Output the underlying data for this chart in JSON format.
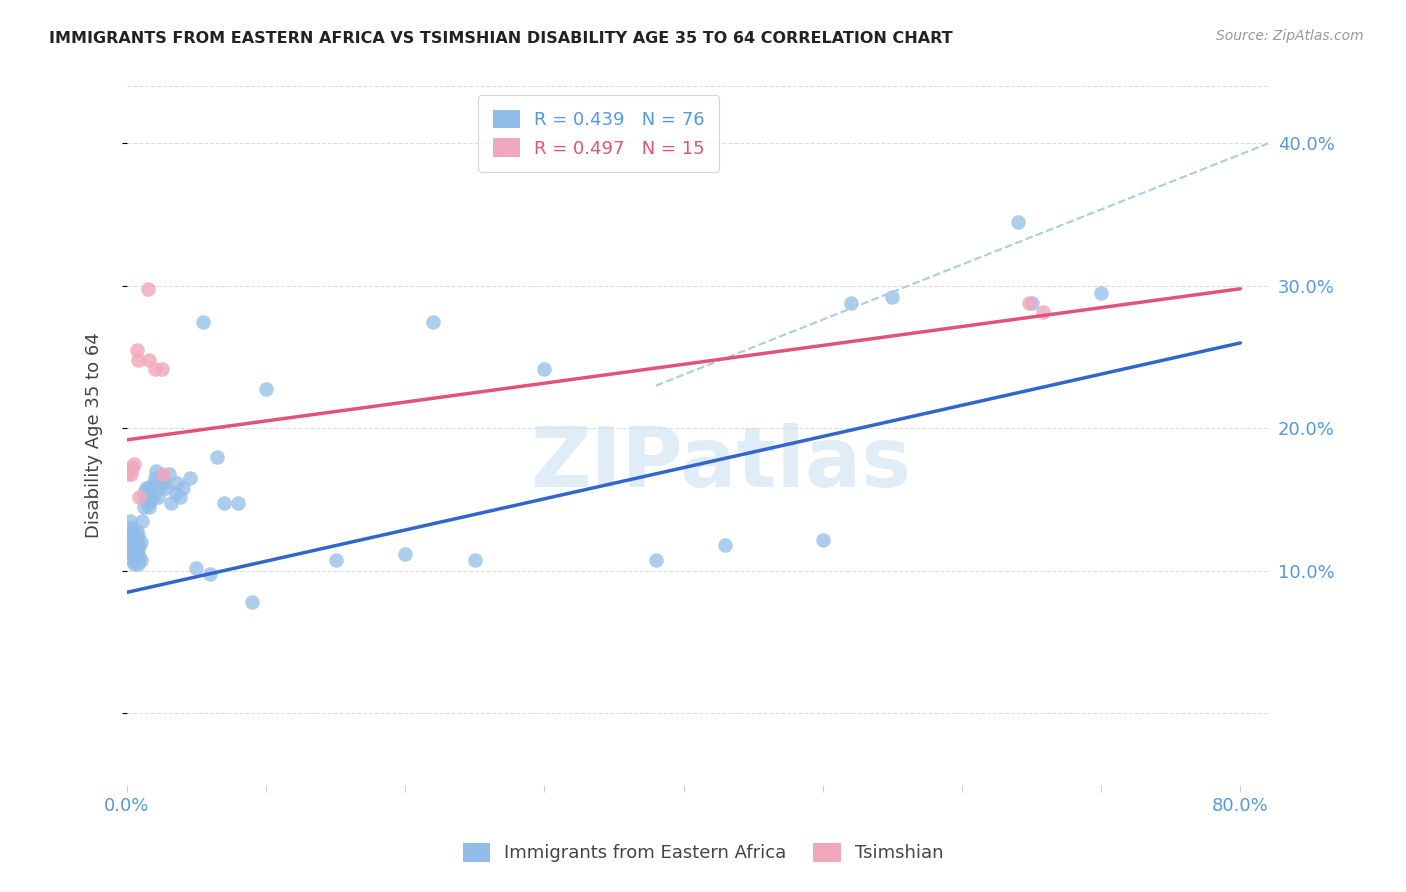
{
  "title": "IMMIGRANTS FROM EASTERN AFRICA VS TSIMSHIAN DISABILITY AGE 35 TO 64 CORRELATION CHART",
  "source": "Source: ZipAtlas.com",
  "ylabel": "Disability Age 35 to 64",
  "xlim": [
    0.0,
    0.82
  ],
  "ylim": [
    -0.05,
    0.44
  ],
  "xtick_positions": [
    0.0,
    0.1,
    0.2,
    0.3,
    0.4,
    0.5,
    0.6,
    0.7,
    0.8
  ],
  "xtick_labels": [
    "0.0%",
    "",
    "",
    "",
    "",
    "",
    "",
    "",
    "80.0%"
  ],
  "ytick_positions": [
    0.0,
    0.1,
    0.2,
    0.3,
    0.4
  ],
  "ytick_labels_right": [
    "",
    "10.0%",
    "20.0%",
    "30.0%",
    "40.0%"
  ],
  "blue_scatter_color": "#92BDE8",
  "pink_scatter_color": "#F2A8BC",
  "blue_line_color": "#3366CC",
  "pink_line_color": "#E05575",
  "dashed_line_color": "#AACCE8",
  "R_blue": 0.439,
  "N_blue": 76,
  "R_pink": 0.497,
  "N_pink": 15,
  "blue_scatter_x": [
    0.001,
    0.001,
    0.002,
    0.002,
    0.002,
    0.003,
    0.003,
    0.003,
    0.003,
    0.004,
    0.004,
    0.004,
    0.005,
    0.005,
    0.005,
    0.006,
    0.006,
    0.006,
    0.006,
    0.007,
    0.007,
    0.007,
    0.008,
    0.008,
    0.008,
    0.009,
    0.009,
    0.01,
    0.01,
    0.011,
    0.012,
    0.012,
    0.013,
    0.014,
    0.015,
    0.015,
    0.016,
    0.016,
    0.017,
    0.018,
    0.019,
    0.02,
    0.021,
    0.022,
    0.023,
    0.025,
    0.027,
    0.028,
    0.03,
    0.032,
    0.035,
    0.036,
    0.038,
    0.04,
    0.045,
    0.05,
    0.055,
    0.06,
    0.065,
    0.07,
    0.08,
    0.09,
    0.1,
    0.15,
    0.2,
    0.22,
    0.25,
    0.3,
    0.38,
    0.43,
    0.5,
    0.52,
    0.55,
    0.64,
    0.65,
    0.7
  ],
  "blue_scatter_y": [
    0.12,
    0.13,
    0.118,
    0.125,
    0.135,
    0.112,
    0.122,
    0.128,
    0.115,
    0.108,
    0.118,
    0.13,
    0.105,
    0.115,
    0.125,
    0.11,
    0.118,
    0.108,
    0.122,
    0.112,
    0.12,
    0.128,
    0.105,
    0.115,
    0.125,
    0.11,
    0.118,
    0.108,
    0.12,
    0.135,
    0.145,
    0.155,
    0.15,
    0.158,
    0.148,
    0.158,
    0.145,
    0.155,
    0.15,
    0.16,
    0.152,
    0.165,
    0.17,
    0.152,
    0.158,
    0.165,
    0.162,
    0.158,
    0.168,
    0.148,
    0.155,
    0.162,
    0.152,
    0.158,
    0.165,
    0.102,
    0.275,
    0.098,
    0.18,
    0.148,
    0.148,
    0.078,
    0.228,
    0.108,
    0.112,
    0.275,
    0.108,
    0.242,
    0.108,
    0.118,
    0.122,
    0.288,
    0.292,
    0.345,
    0.288,
    0.295
  ],
  "pink_scatter_x": [
    0.001,
    0.002,
    0.003,
    0.004,
    0.005,
    0.007,
    0.008,
    0.009,
    0.015,
    0.016,
    0.02,
    0.025,
    0.026,
    0.648,
    0.658
  ],
  "pink_scatter_y": [
    0.168,
    0.172,
    0.168,
    0.172,
    0.175,
    0.255,
    0.248,
    0.152,
    0.298,
    0.248,
    0.242,
    0.242,
    0.168,
    0.288,
    0.282
  ],
  "blue_line_x": [
    0.0,
    0.8
  ],
  "blue_line_y": [
    0.085,
    0.26
  ],
  "pink_line_x": [
    0.0,
    0.8
  ],
  "pink_line_y": [
    0.192,
    0.298
  ],
  "dashed_line_x": [
    0.38,
    0.82
  ],
  "dashed_line_y": [
    0.23,
    0.4
  ],
  "watermark": "ZIPatlas",
  "bg_color": "#FFFFFF",
  "grid_color": "#DDDDDD",
  "right_tick_color": "#5599DD",
  "bottom_tick_color": "#5599DD",
  "legend_edge_color": "#CCCCCC",
  "legend_r_n_color_blue": "#5599DD",
  "legend_r_n_color_pink": "#E05575"
}
